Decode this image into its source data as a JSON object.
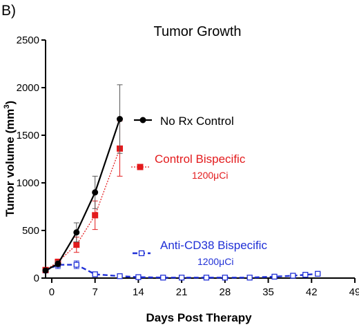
{
  "panel_label": "B)",
  "chart_data": {
    "type": "line",
    "title": "Tumor Growth",
    "xlabel": "Days Post Therapy",
    "ylabel_main": "Tumor volume (mm",
    "ylabel_sup": "3",
    "ylabel_close": ")",
    "xlim": [
      -1,
      49
    ],
    "ylim": [
      0,
      2500
    ],
    "xticks": [
      0,
      7,
      14,
      21,
      28,
      35,
      42,
      49
    ],
    "yticks": [
      0,
      500,
      1000,
      1500,
      2000,
      2500
    ],
    "grid": false,
    "series": [
      {
        "name": "No Rx Control",
        "sublabel": "",
        "color": "#000000",
        "line": "solid",
        "marker": "circle-filled",
        "x": [
          -1,
          1,
          4,
          7,
          11
        ],
        "y": [
          80,
          150,
          480,
          900,
          1670
        ],
        "err": [
          0,
          30,
          100,
          170,
          360
        ]
      },
      {
        "name": "Control Bispecific",
        "sublabel": "1200μCi",
        "color": "#e31a1c",
        "line": "dotted",
        "marker": "square-filled",
        "x": [
          -1,
          1,
          4,
          7,
          11
        ],
        "y": [
          85,
          170,
          350,
          660,
          1360
        ],
        "err": [
          0,
          30,
          80,
          150,
          290
        ]
      },
      {
        "name": "Anti-CD38 Bispecific",
        "sublabel": "1200μCi",
        "color": "#1f2fd6",
        "line": "dashed",
        "marker": "square-open",
        "x": [
          -1,
          1,
          4,
          7,
          11,
          14,
          18,
          21,
          25,
          28,
          32,
          36,
          39,
          41,
          43
        ],
        "y": [
          80,
          140,
          140,
          40,
          20,
          10,
          5,
          5,
          5,
          5,
          5,
          15,
          25,
          35,
          45
        ],
        "err": [
          0,
          40,
          40,
          10,
          5,
          0,
          0,
          0,
          0,
          0,
          0,
          5,
          5,
          10,
          10
        ]
      }
    ]
  }
}
